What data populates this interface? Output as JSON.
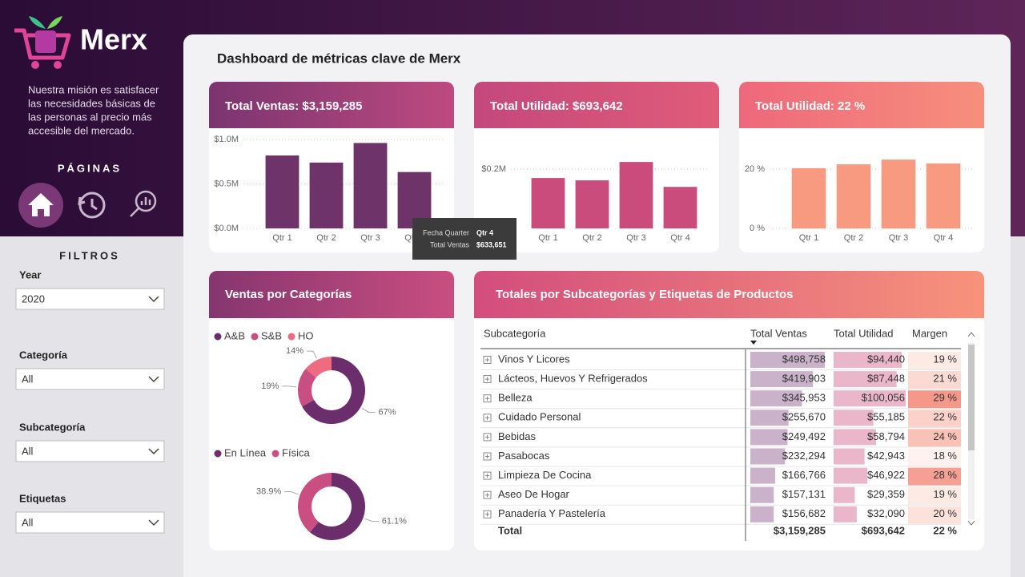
{
  "sidebar": {
    "brand": "Merx",
    "mission": [
      "Nuestra misión es satisfacer",
      "las necesidades básicas de",
      "las personas al precio más",
      "accesible del mercado."
    ],
    "pages_title": "PÁGINAS"
  },
  "filters": {
    "title": "FILTROS",
    "items": [
      {
        "label": "Year",
        "value": "2020"
      },
      {
        "label": "Categoría",
        "value": "All"
      },
      {
        "label": "Subcategoría",
        "value": "All"
      },
      {
        "label": "Etiquetas",
        "value": "All"
      }
    ]
  },
  "header": {
    "title": "Dashboard de métricas clave de Merx"
  },
  "kpi_cards": [
    {
      "title": "Total Ventas: $3,159,285",
      "chart": {
        "type": "bar",
        "categories": [
          "Qtr 1",
          "Qtr 2",
          "Qtr 3",
          "Qtr 4"
        ],
        "values": [
          0.82,
          0.74,
          0.96,
          0.633651
        ],
        "color": "#6e3369",
        "ylim": [
          0,
          1.0
        ],
        "yticks": [
          {
            "value": 0,
            "label": "$0.0M"
          },
          {
            "value": 0.5,
            "label": "$0.5M"
          },
          {
            "value": 1.0,
            "label": "$1.0M"
          }
        ],
        "grid": true
      }
    },
    {
      "title": "Total Utilidad: $693,642",
      "chart": {
        "type": "bar",
        "categories": [
          "Qtr 1",
          "Qtr 2",
          "Qtr 3",
          "Qtr 4"
        ],
        "values": [
          0.17,
          0.162,
          0.224,
          0.14
        ],
        "color": "#c94c7c",
        "ylim": [
          0,
          0.3
        ],
        "yticks": [
          {
            "value": 0.2,
            "label": "$0.2M"
          }
        ],
        "grid": true
      }
    },
    {
      "title": "Total Utilidad: 22 %",
      "chart": {
        "type": "bar",
        "categories": [
          "Qtr 1",
          "Qtr 2",
          "Qtr 3",
          "Qtr 4"
        ],
        "values": [
          20.3,
          21.6,
          23.2,
          21.9
        ],
        "color": "#f79a7f",
        "ylim": [
          0,
          30
        ],
        "yticks": [
          {
            "value": 0,
            "label": "0 %"
          },
          {
            "value": 20,
            "label": "20 %"
          }
        ],
        "grid": true
      }
    }
  ],
  "tooltip": {
    "rows": [
      [
        "Fecha Quarter",
        "Qtr 4"
      ],
      [
        "Total Ventas",
        "$633,651"
      ]
    ]
  },
  "category_card": {
    "title": "Ventas por Categorías",
    "charts": [
      {
        "type": "donut",
        "categories": [
          "A&B",
          "S&B",
          "HO"
        ],
        "values": [
          67,
          19,
          14
        ],
        "value_labels": [
          "67%",
          "19%",
          "14%"
        ],
        "colors": [
          "#6b2d6b",
          "#c94f82",
          "#ef6b80"
        ]
      },
      {
        "type": "donut",
        "categories": [
          "En Línea",
          "Física"
        ],
        "values": [
          61.1,
          38.9
        ],
        "value_labels": [
          "61.1%",
          "38.9%"
        ],
        "colors": [
          "#6b2d6b",
          "#c94f82"
        ]
      }
    ]
  },
  "table_card": {
    "title": "Totales por Subcategorías y Etiquetas de Productos",
    "columns": [
      "Subcategoría",
      "Total Ventas",
      "Total Utilidad",
      "Margen"
    ],
    "rows": [
      {
        "subcategoria": "Vinos Y Licores",
        "total_ventas": {
          "value": 498758,
          "label": "$498,758"
        },
        "total_utilidad": {
          "value": 94440,
          "label": "$94,440"
        },
        "margen": {
          "value": 19,
          "label": "19 %"
        }
      },
      {
        "subcategoria": "Lácteos, Huevos Y Refrigerados",
        "total_ventas": {
          "value": 419903,
          "label": "$419,903"
        },
        "total_utilidad": {
          "value": 87448,
          "label": "$87,448"
        },
        "margen": {
          "value": 21,
          "label": "21 %"
        }
      },
      {
        "subcategoria": "Belleza",
        "total_ventas": {
          "value": 345953,
          "label": "$345,953"
        },
        "total_utilidad": {
          "value": 100056,
          "label": "$100,056"
        },
        "margen": {
          "value": 29,
          "label": "29 %"
        }
      },
      {
        "subcategoria": "Cuidado Personal",
        "total_ventas": {
          "value": 255670,
          "label": "$255,670"
        },
        "total_utilidad": {
          "value": 55185,
          "label": "$55,185"
        },
        "margen": {
          "value": 22,
          "label": "22 %"
        }
      },
      {
        "subcategoria": "Bebidas",
        "total_ventas": {
          "value": 249492,
          "label": "$249,492"
        },
        "total_utilidad": {
          "value": 58794,
          "label": "$58,794"
        },
        "margen": {
          "value": 24,
          "label": "24 %"
        }
      },
      {
        "subcategoria": "Pasabocas",
        "total_ventas": {
          "value": 232294,
          "label": "$232,294"
        },
        "total_utilidad": {
          "value": 42943,
          "label": "$42,943"
        },
        "margen": {
          "value": 18,
          "label": "18 %"
        }
      },
      {
        "subcategoria": "Limpieza De Cocina",
        "total_ventas": {
          "value": 166766,
          "label": "$166,766"
        },
        "total_utilidad": {
          "value": 46922,
          "label": "$46,922"
        },
        "margen": {
          "value": 28,
          "label": "28 %"
        }
      },
      {
        "subcategoria": "Aseo De Hogar",
        "total_ventas": {
          "value": 157131,
          "label": "$157,131"
        },
        "total_utilidad": {
          "value": 29359,
          "label": "$29,359"
        },
        "margen": {
          "value": 19,
          "label": "19 %"
        }
      },
      {
        "subcategoria": "Panadería Y Pastelería",
        "total_ventas": {
          "value": 156682,
          "label": "$156,682"
        },
        "total_utilidad": {
          "value": 32090,
          "label": "$32,090"
        },
        "margen": {
          "value": 20,
          "label": "20 %"
        }
      }
    ],
    "total": [
      "Total",
      "$3,159,285",
      "$693,642",
      "22 %"
    ]
  }
}
